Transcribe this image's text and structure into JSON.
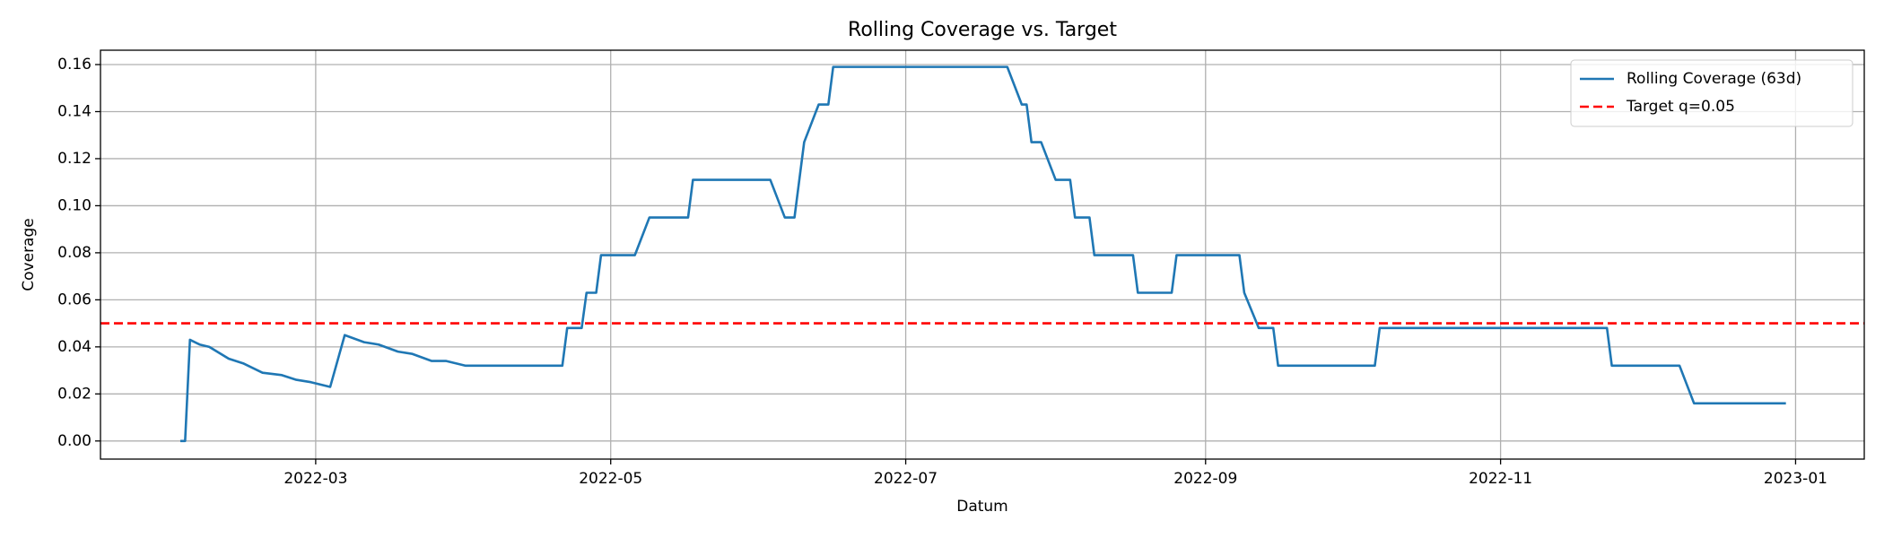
{
  "chart_data": {
    "type": "line",
    "title": "Rolling Coverage vs. Target",
    "x_label": "Datum",
    "y_label": "Coverage",
    "x": [
      31,
      32,
      33,
      35,
      37,
      41,
      44,
      48,
      52,
      55,
      58,
      62,
      65,
      69,
      72,
      76,
      79,
      83,
      86,
      90,
      110,
      111,
      114,
      115,
      117,
      118,
      125,
      128,
      136,
      137,
      153,
      156,
      158,
      160,
      163,
      165,
      166,
      202,
      205,
      206,
      207,
      209,
      212,
      215,
      216,
      219,
      220,
      228,
      229,
      236,
      237,
      250,
      251,
      254,
      257,
      258,
      278,
      279,
      326,
      327,
      341,
      344,
      363
    ],
    "series": [
      {
        "name": "Rolling Coverage (63d)",
        "color": "#1f77b4",
        "values": [
          0,
          0,
          0.043,
          0.041,
          0.04,
          0.035,
          0.033,
          0.029,
          0.028,
          0.026,
          0.025,
          0.023,
          0.045,
          0.042,
          0.041,
          0.038,
          0.037,
          0.034,
          0.034,
          0.032,
          0.032,
          0.048,
          0.048,
          0.063,
          0.063,
          0.079,
          0.079,
          0.095,
          0.095,
          0.111,
          0.111,
          0.095,
          0.095,
          0.127,
          0.143,
          0.143,
          0.159,
          0.159,
          0.143,
          0.143,
          0.127,
          0.127,
          0.111,
          0.111,
          0.095,
          0.095,
          0.079,
          0.079,
          0.063,
          0.063,
          0.079,
          0.079,
          0.063,
          0.048,
          0.048,
          0.032,
          0.032,
          0.048,
          0.048,
          0.032,
          0.032,
          0.016,
          0.016
        ]
      }
    ],
    "hlines": [
      {
        "name": "Target q=0.05",
        "y": 0.05,
        "color": "#ff0000",
        "style": "dashed"
      }
    ],
    "xlim": [
      14.5,
      379.2
    ],
    "ylim": [
      -0.0077,
      0.1661
    ],
    "xticks": [
      {
        "value": 59,
        "label": "2022-03"
      },
      {
        "value": 120,
        "label": "2022-05"
      },
      {
        "value": 181,
        "label": "2022-07"
      },
      {
        "value": 243,
        "label": "2022-09"
      },
      {
        "value": 304,
        "label": "2022-11"
      },
      {
        "value": 365,
        "label": "2023-01"
      }
    ],
    "yticks": [
      {
        "value": 0,
        "label": "0.00"
      },
      {
        "value": 0.02,
        "label": "0.02"
      },
      {
        "value": 0.04,
        "label": "0.04"
      },
      {
        "value": 0.06,
        "label": "0.06"
      },
      {
        "value": 0.08,
        "label": "0.08"
      },
      {
        "value": 0.1,
        "label": "0.10"
      },
      {
        "value": 0.12,
        "label": "0.12"
      },
      {
        "value": 0.14,
        "label": "0.14"
      },
      {
        "value": 0.16,
        "label": "0.16"
      }
    ],
    "grid": true,
    "legend": "upper-right"
  }
}
